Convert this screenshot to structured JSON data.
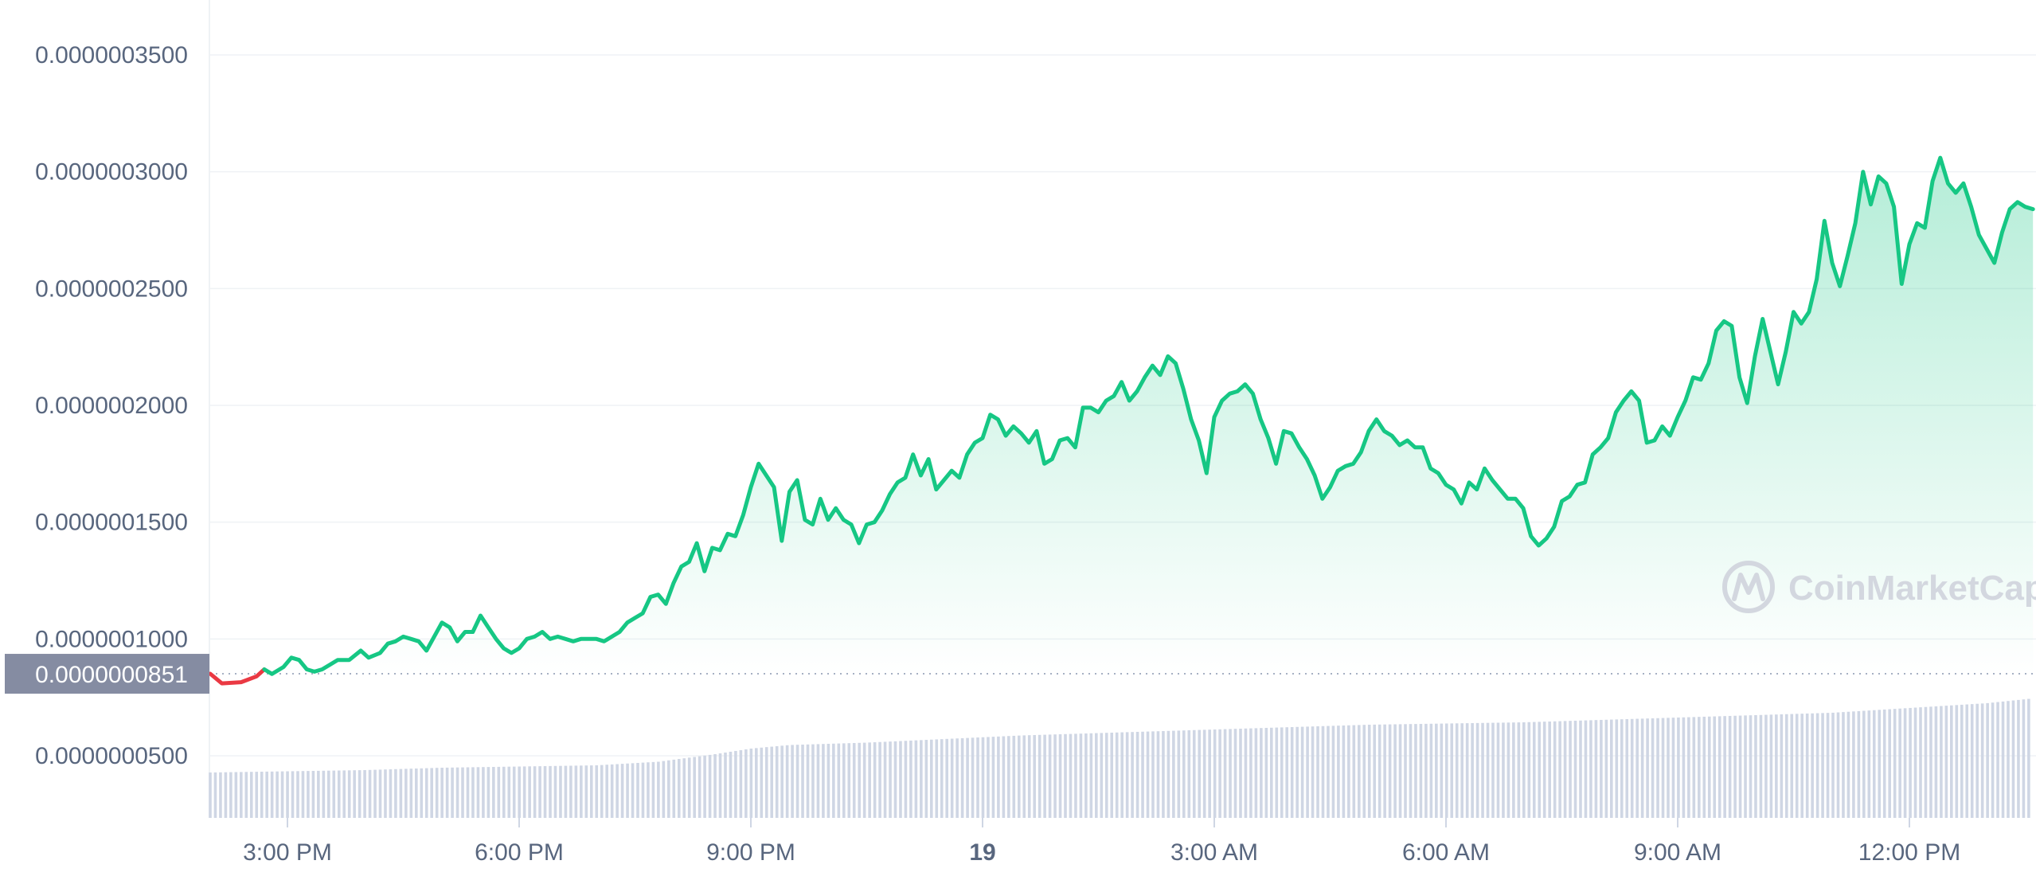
{
  "colors": {
    "up": "#16c784",
    "down": "#ea3943",
    "area_fill": "#16c784",
    "volume": "#cfd6e4",
    "axis_text": "#58667e",
    "price_label_bg": "#858ca2",
    "grid": "#eff2f5"
  },
  "watermark": {
    "text": "CoinMarketCap",
    "icon": "coinmarketcap-logo-icon"
  },
  "current_price_label": "0.0000000851",
  "chart_data": {
    "type": "line",
    "title": "",
    "xlabel": "",
    "ylabel": "",
    "ylim": [
      3.7e-08,
      3.65e-07
    ],
    "y_ticks": [
      {
        "value": 3.5e-07,
        "label": "0.0000003500"
      },
      {
        "value": 3e-07,
        "label": "0.0000003000"
      },
      {
        "value": 2.5e-07,
        "label": "0.0000002500"
      },
      {
        "value": 2e-07,
        "label": "0.0000002000"
      },
      {
        "value": 1.5e-07,
        "label": "0.0000001500"
      },
      {
        "value": 1e-07,
        "label": "0.0000001000"
      },
      {
        "value": 5e-08,
        "label": "0.0000000500"
      }
    ],
    "x_range_hours": [
      -1,
      22.6
    ],
    "x_ticks": [
      {
        "hour": 0,
        "label": "3:00 PM",
        "bold": false
      },
      {
        "hour": 3,
        "label": "6:00 PM",
        "bold": false
      },
      {
        "hour": 6,
        "label": "9:00 PM",
        "bold": false
      },
      {
        "hour": 9,
        "label": "19",
        "bold": true
      },
      {
        "hour": 12,
        "label": "3:00 AM",
        "bold": false
      },
      {
        "hour": 15,
        "label": "6:00 AM",
        "bold": false
      },
      {
        "hour": 18,
        "label": "9:00 AM",
        "bold": false
      },
      {
        "hour": 21,
        "label": "12:00 PM",
        "bold": false
      }
    ],
    "reference_price": 8.51e-08,
    "series": [
      {
        "values": [
          [
            -1.0,
            8.51e-08
          ],
          [
            -0.85,
            8.1e-08
          ],
          [
            -0.6,
            8.15e-08
          ],
          [
            -0.4,
            8.4e-08
          ],
          [
            -0.3,
            8.7e-08
          ],
          [
            -0.2,
            8.5e-08
          ],
          [
            -0.05,
            8.8e-08
          ],
          [
            0.05,
            9.2e-08
          ],
          [
            0.15,
            9.1e-08
          ],
          [
            0.25,
            8.7e-08
          ],
          [
            0.35,
            8.6e-08
          ],
          [
            0.45,
            8.7e-08
          ],
          [
            0.55,
            8.9e-08
          ],
          [
            0.65,
            9.1e-08
          ],
          [
            0.8,
            9.1e-08
          ],
          [
            0.95,
            9.5e-08
          ],
          [
            1.05,
            9.2e-08
          ],
          [
            1.2,
            9.4e-08
          ],
          [
            1.3,
            9.8e-08
          ],
          [
            1.4,
            9.9e-08
          ],
          [
            1.5,
            1.01e-07
          ],
          [
            1.6,
            1e-07
          ],
          [
            1.7,
            9.9e-08
          ],
          [
            1.8,
            9.5e-08
          ],
          [
            1.9,
            1.01e-07
          ],
          [
            2.0,
            1.07e-07
          ],
          [
            2.1,
            1.05e-07
          ],
          [
            2.2,
            9.9e-08
          ],
          [
            2.3,
            1.03e-07
          ],
          [
            2.4,
            1.03e-07
          ],
          [
            2.5,
            1.1e-07
          ],
          [
            2.6,
            1.05e-07
          ],
          [
            2.7,
            1e-07
          ],
          [
            2.8,
            9.6e-08
          ],
          [
            2.9,
            9.4e-08
          ],
          [
            3.0,
            9.6e-08
          ],
          [
            3.1,
            1e-07
          ],
          [
            3.2,
            1.01e-07
          ],
          [
            3.3,
            1.03e-07
          ],
          [
            3.4,
            1e-07
          ],
          [
            3.5,
            1.01e-07
          ],
          [
            3.6,
            1e-07
          ],
          [
            3.7,
            9.9e-08
          ],
          [
            3.8,
            1e-07
          ],
          [
            3.9,
            1e-07
          ],
          [
            4.0,
            1e-07
          ],
          [
            4.1,
            9.9e-08
          ],
          [
            4.2,
            1.01e-07
          ],
          [
            4.3,
            1.03e-07
          ],
          [
            4.4,
            1.07e-07
          ],
          [
            4.5,
            1.09e-07
          ],
          [
            4.6,
            1.11e-07
          ],
          [
            4.7,
            1.18e-07
          ],
          [
            4.8,
            1.19e-07
          ],
          [
            4.9,
            1.15e-07
          ],
          [
            5.0,
            1.24e-07
          ],
          [
            5.1,
            1.31e-07
          ],
          [
            5.2,
            1.33e-07
          ],
          [
            5.3,
            1.41e-07
          ],
          [
            5.4,
            1.29e-07
          ],
          [
            5.5,
            1.39e-07
          ],
          [
            5.6,
            1.38e-07
          ],
          [
            5.7,
            1.45e-07
          ],
          [
            5.8,
            1.44e-07
          ],
          [
            5.9,
            1.53e-07
          ],
          [
            6.0,
            1.65e-07
          ],
          [
            6.1,
            1.75e-07
          ],
          [
            6.2,
            1.7e-07
          ],
          [
            6.3,
            1.65e-07
          ],
          [
            6.4,
            1.42e-07
          ],
          [
            6.5,
            1.63e-07
          ],
          [
            6.6,
            1.68e-07
          ],
          [
            6.7,
            1.51e-07
          ],
          [
            6.8,
            1.49e-07
          ],
          [
            6.9,
            1.6e-07
          ],
          [
            7.0,
            1.51e-07
          ],
          [
            7.1,
            1.56e-07
          ],
          [
            7.2,
            1.51e-07
          ],
          [
            7.3,
            1.49e-07
          ],
          [
            7.4,
            1.41e-07
          ],
          [
            7.5,
            1.49e-07
          ],
          [
            7.6,
            1.5e-07
          ],
          [
            7.7,
            1.55e-07
          ],
          [
            7.8,
            1.62e-07
          ],
          [
            7.9,
            1.67e-07
          ],
          [
            8.0,
            1.69e-07
          ],
          [
            8.1,
            1.79e-07
          ],
          [
            8.2,
            1.7e-07
          ],
          [
            8.3,
            1.77e-07
          ],
          [
            8.4,
            1.64e-07
          ],
          [
            8.5,
            1.68e-07
          ],
          [
            8.6,
            1.72e-07
          ],
          [
            8.7,
            1.69e-07
          ],
          [
            8.8,
            1.79e-07
          ],
          [
            8.9,
            1.84e-07
          ],
          [
            9.0,
            1.86e-07
          ],
          [
            9.1,
            1.96e-07
          ],
          [
            9.2,
            1.94e-07
          ],
          [
            9.3,
            1.87e-07
          ],
          [
            9.4,
            1.91e-07
          ],
          [
            9.5,
            1.88e-07
          ],
          [
            9.6,
            1.84e-07
          ],
          [
            9.7,
            1.89e-07
          ],
          [
            9.8,
            1.75e-07
          ],
          [
            9.9,
            1.77e-07
          ],
          [
            10.0,
            1.85e-07
          ],
          [
            10.1,
            1.86e-07
          ],
          [
            10.2,
            1.82e-07
          ],
          [
            10.3,
            1.99e-07
          ],
          [
            10.4,
            1.99e-07
          ],
          [
            10.5,
            1.97e-07
          ],
          [
            10.6,
            2.02e-07
          ],
          [
            10.7,
            2.04e-07
          ],
          [
            10.8,
            2.1e-07
          ],
          [
            10.9,
            2.02e-07
          ],
          [
            11.0,
            2.06e-07
          ],
          [
            11.1,
            2.12e-07
          ],
          [
            11.2,
            2.17e-07
          ],
          [
            11.3,
            2.13e-07
          ],
          [
            11.4,
            2.21e-07
          ],
          [
            11.5,
            2.18e-07
          ],
          [
            11.6,
            2.07e-07
          ],
          [
            11.7,
            1.94e-07
          ],
          [
            11.8,
            1.85e-07
          ],
          [
            11.9,
            1.71e-07
          ],
          [
            12.0,
            1.95e-07
          ],
          [
            12.1,
            2.02e-07
          ],
          [
            12.2,
            2.05e-07
          ],
          [
            12.3,
            2.06e-07
          ],
          [
            12.4,
            2.09e-07
          ],
          [
            12.5,
            2.05e-07
          ],
          [
            12.6,
            1.94e-07
          ],
          [
            12.7,
            1.86e-07
          ],
          [
            12.8,
            1.75e-07
          ],
          [
            12.9,
            1.89e-07
          ],
          [
            13.0,
            1.88e-07
          ],
          [
            13.1,
            1.82e-07
          ],
          [
            13.2,
            1.77e-07
          ],
          [
            13.3,
            1.7e-07
          ],
          [
            13.4,
            1.6e-07
          ],
          [
            13.5,
            1.65e-07
          ],
          [
            13.6,
            1.72e-07
          ],
          [
            13.7,
            1.74e-07
          ],
          [
            13.8,
            1.75e-07
          ],
          [
            13.9,
            1.8e-07
          ],
          [
            14.0,
            1.89e-07
          ],
          [
            14.1,
            1.94e-07
          ],
          [
            14.2,
            1.89e-07
          ],
          [
            14.3,
            1.87e-07
          ],
          [
            14.4,
            1.83e-07
          ],
          [
            14.5,
            1.85e-07
          ],
          [
            14.6,
            1.82e-07
          ],
          [
            14.7,
            1.82e-07
          ],
          [
            14.8,
            1.73e-07
          ],
          [
            14.9,
            1.71e-07
          ],
          [
            15.0,
            1.66e-07
          ],
          [
            15.1,
            1.64e-07
          ],
          [
            15.2,
            1.58e-07
          ],
          [
            15.3,
            1.67e-07
          ],
          [
            15.4,
            1.64e-07
          ],
          [
            15.5,
            1.73e-07
          ],
          [
            15.6,
            1.68e-07
          ],
          [
            15.7,
            1.64e-07
          ],
          [
            15.8,
            1.6e-07
          ],
          [
            15.9,
            1.6e-07
          ],
          [
            16.0,
            1.56e-07
          ],
          [
            16.1,
            1.44e-07
          ],
          [
            16.2,
            1.4e-07
          ],
          [
            16.3,
            1.43e-07
          ],
          [
            16.4,
            1.48e-07
          ],
          [
            16.5,
            1.59e-07
          ],
          [
            16.6,
            1.61e-07
          ],
          [
            16.7,
            1.66e-07
          ],
          [
            16.8,
            1.67e-07
          ],
          [
            16.9,
            1.79e-07
          ],
          [
            17.0,
            1.82e-07
          ],
          [
            17.1,
            1.86e-07
          ],
          [
            17.2,
            1.97e-07
          ],
          [
            17.3,
            2.02e-07
          ],
          [
            17.4,
            2.06e-07
          ],
          [
            17.5,
            2.02e-07
          ],
          [
            17.6,
            1.84e-07
          ],
          [
            17.7,
            1.85e-07
          ],
          [
            17.8,
            1.91e-07
          ],
          [
            17.9,
            1.87e-07
          ],
          [
            18.0,
            1.95e-07
          ],
          [
            18.1,
            2.02e-07
          ],
          [
            18.2,
            2.12e-07
          ],
          [
            18.3,
            2.11e-07
          ],
          [
            18.4,
            2.18e-07
          ],
          [
            18.5,
            2.32e-07
          ],
          [
            18.6,
            2.36e-07
          ],
          [
            18.7,
            2.34e-07
          ],
          [
            18.8,
            2.12e-07
          ],
          [
            18.9,
            2.01e-07
          ],
          [
            19.0,
            2.21e-07
          ],
          [
            19.1,
            2.37e-07
          ],
          [
            19.2,
            2.23e-07
          ],
          [
            19.3,
            2.09e-07
          ],
          [
            19.4,
            2.23e-07
          ],
          [
            19.5,
            2.4e-07
          ],
          [
            19.6,
            2.35e-07
          ],
          [
            19.7,
            2.4e-07
          ],
          [
            19.8,
            2.54e-07
          ],
          [
            19.9,
            2.79e-07
          ],
          [
            20.0,
            2.61e-07
          ],
          [
            20.1,
            2.51e-07
          ],
          [
            20.2,
            2.64e-07
          ],
          [
            20.3,
            2.78e-07
          ],
          [
            20.4,
            3e-07
          ],
          [
            20.5,
            2.86e-07
          ],
          [
            20.6,
            2.98e-07
          ],
          [
            20.7,
            2.95e-07
          ],
          [
            20.8,
            2.85e-07
          ],
          [
            20.9,
            2.52e-07
          ],
          [
            21.0,
            2.69e-07
          ],
          [
            21.1,
            2.78e-07
          ],
          [
            21.2,
            2.76e-07
          ],
          [
            21.3,
            2.96e-07
          ],
          [
            21.4,
            3.06e-07
          ],
          [
            21.5,
            2.95e-07
          ],
          [
            21.6,
            2.91e-07
          ],
          [
            21.7,
            2.95e-07
          ],
          [
            21.8,
            2.85e-07
          ],
          [
            21.9,
            2.73e-07
          ],
          [
            22.0,
            2.67e-07
          ],
          [
            22.1,
            2.61e-07
          ],
          [
            22.2,
            2.74e-07
          ],
          [
            22.3,
            2.84e-07
          ],
          [
            22.4,
            2.87e-07
          ],
          [
            22.5,
            2.85e-07
          ],
          [
            22.6,
            2.84e-07
          ]
        ]
      }
    ],
    "volume": {
      "values": [
        [
          -1.0,
          0.38
        ],
        [
          0.0,
          0.39
        ],
        [
          1.0,
          0.4
        ],
        [
          2.0,
          0.42
        ],
        [
          3.0,
          0.43
        ],
        [
          4.0,
          0.44
        ],
        [
          4.8,
          0.47
        ],
        [
          5.5,
          0.53
        ],
        [
          6.0,
          0.58
        ],
        [
          6.5,
          0.61
        ],
        [
          7.5,
          0.63
        ],
        [
          8.5,
          0.66
        ],
        [
          9.5,
          0.69
        ],
        [
          10.5,
          0.71
        ],
        [
          11.5,
          0.73
        ],
        [
          12.0,
          0.74
        ],
        [
          13.0,
          0.76
        ],
        [
          14.0,
          0.78
        ],
        [
          15.0,
          0.79
        ],
        [
          16.0,
          0.8
        ],
        [
          17.0,
          0.82
        ],
        [
          18.0,
          0.84
        ],
        [
          19.0,
          0.86
        ],
        [
          20.0,
          0.88
        ],
        [
          21.0,
          0.92
        ],
        [
          22.0,
          0.96
        ],
        [
          22.6,
          1.0
        ]
      ]
    }
  }
}
